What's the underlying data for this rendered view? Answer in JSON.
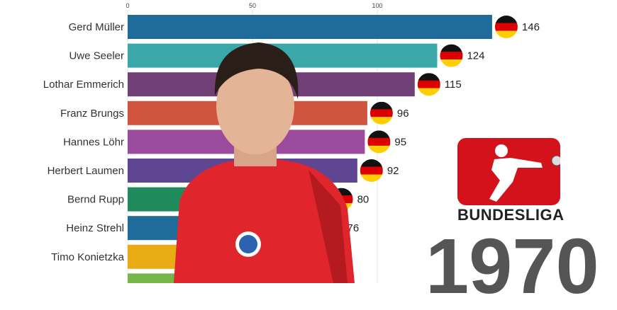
{
  "chart_data": {
    "type": "bar",
    "orientation": "horizontal",
    "title": "",
    "axis_ticks": [
      0,
      50,
      100
    ],
    "xlim": [
      0,
      146
    ],
    "categories": [
      "Gerd Müller",
      "Uwe Seeler",
      "Lothar Emmerich",
      "Franz Brungs",
      "Hannes Löhr",
      "Herbert Laumen",
      "Bernd Rupp",
      "Heinz Strehl",
      "Timo Konietzka",
      ""
    ],
    "values": [
      146,
      124,
      115,
      96,
      95,
      92,
      80,
      76,
      null,
      null
    ],
    "colors": [
      "#1f6b9a",
      "#3aa8a8",
      "#6f3f75",
      "#d1553e",
      "#9a4b9e",
      "#5f4692",
      "#1f8b5c",
      "#1f6b9a",
      "#e9ac14",
      "#78b548"
    ],
    "flag": "germany-flag-icon"
  },
  "logo": {
    "text_light": "BUNDES",
    "text_bold": "LIGA"
  },
  "year": "1970"
}
